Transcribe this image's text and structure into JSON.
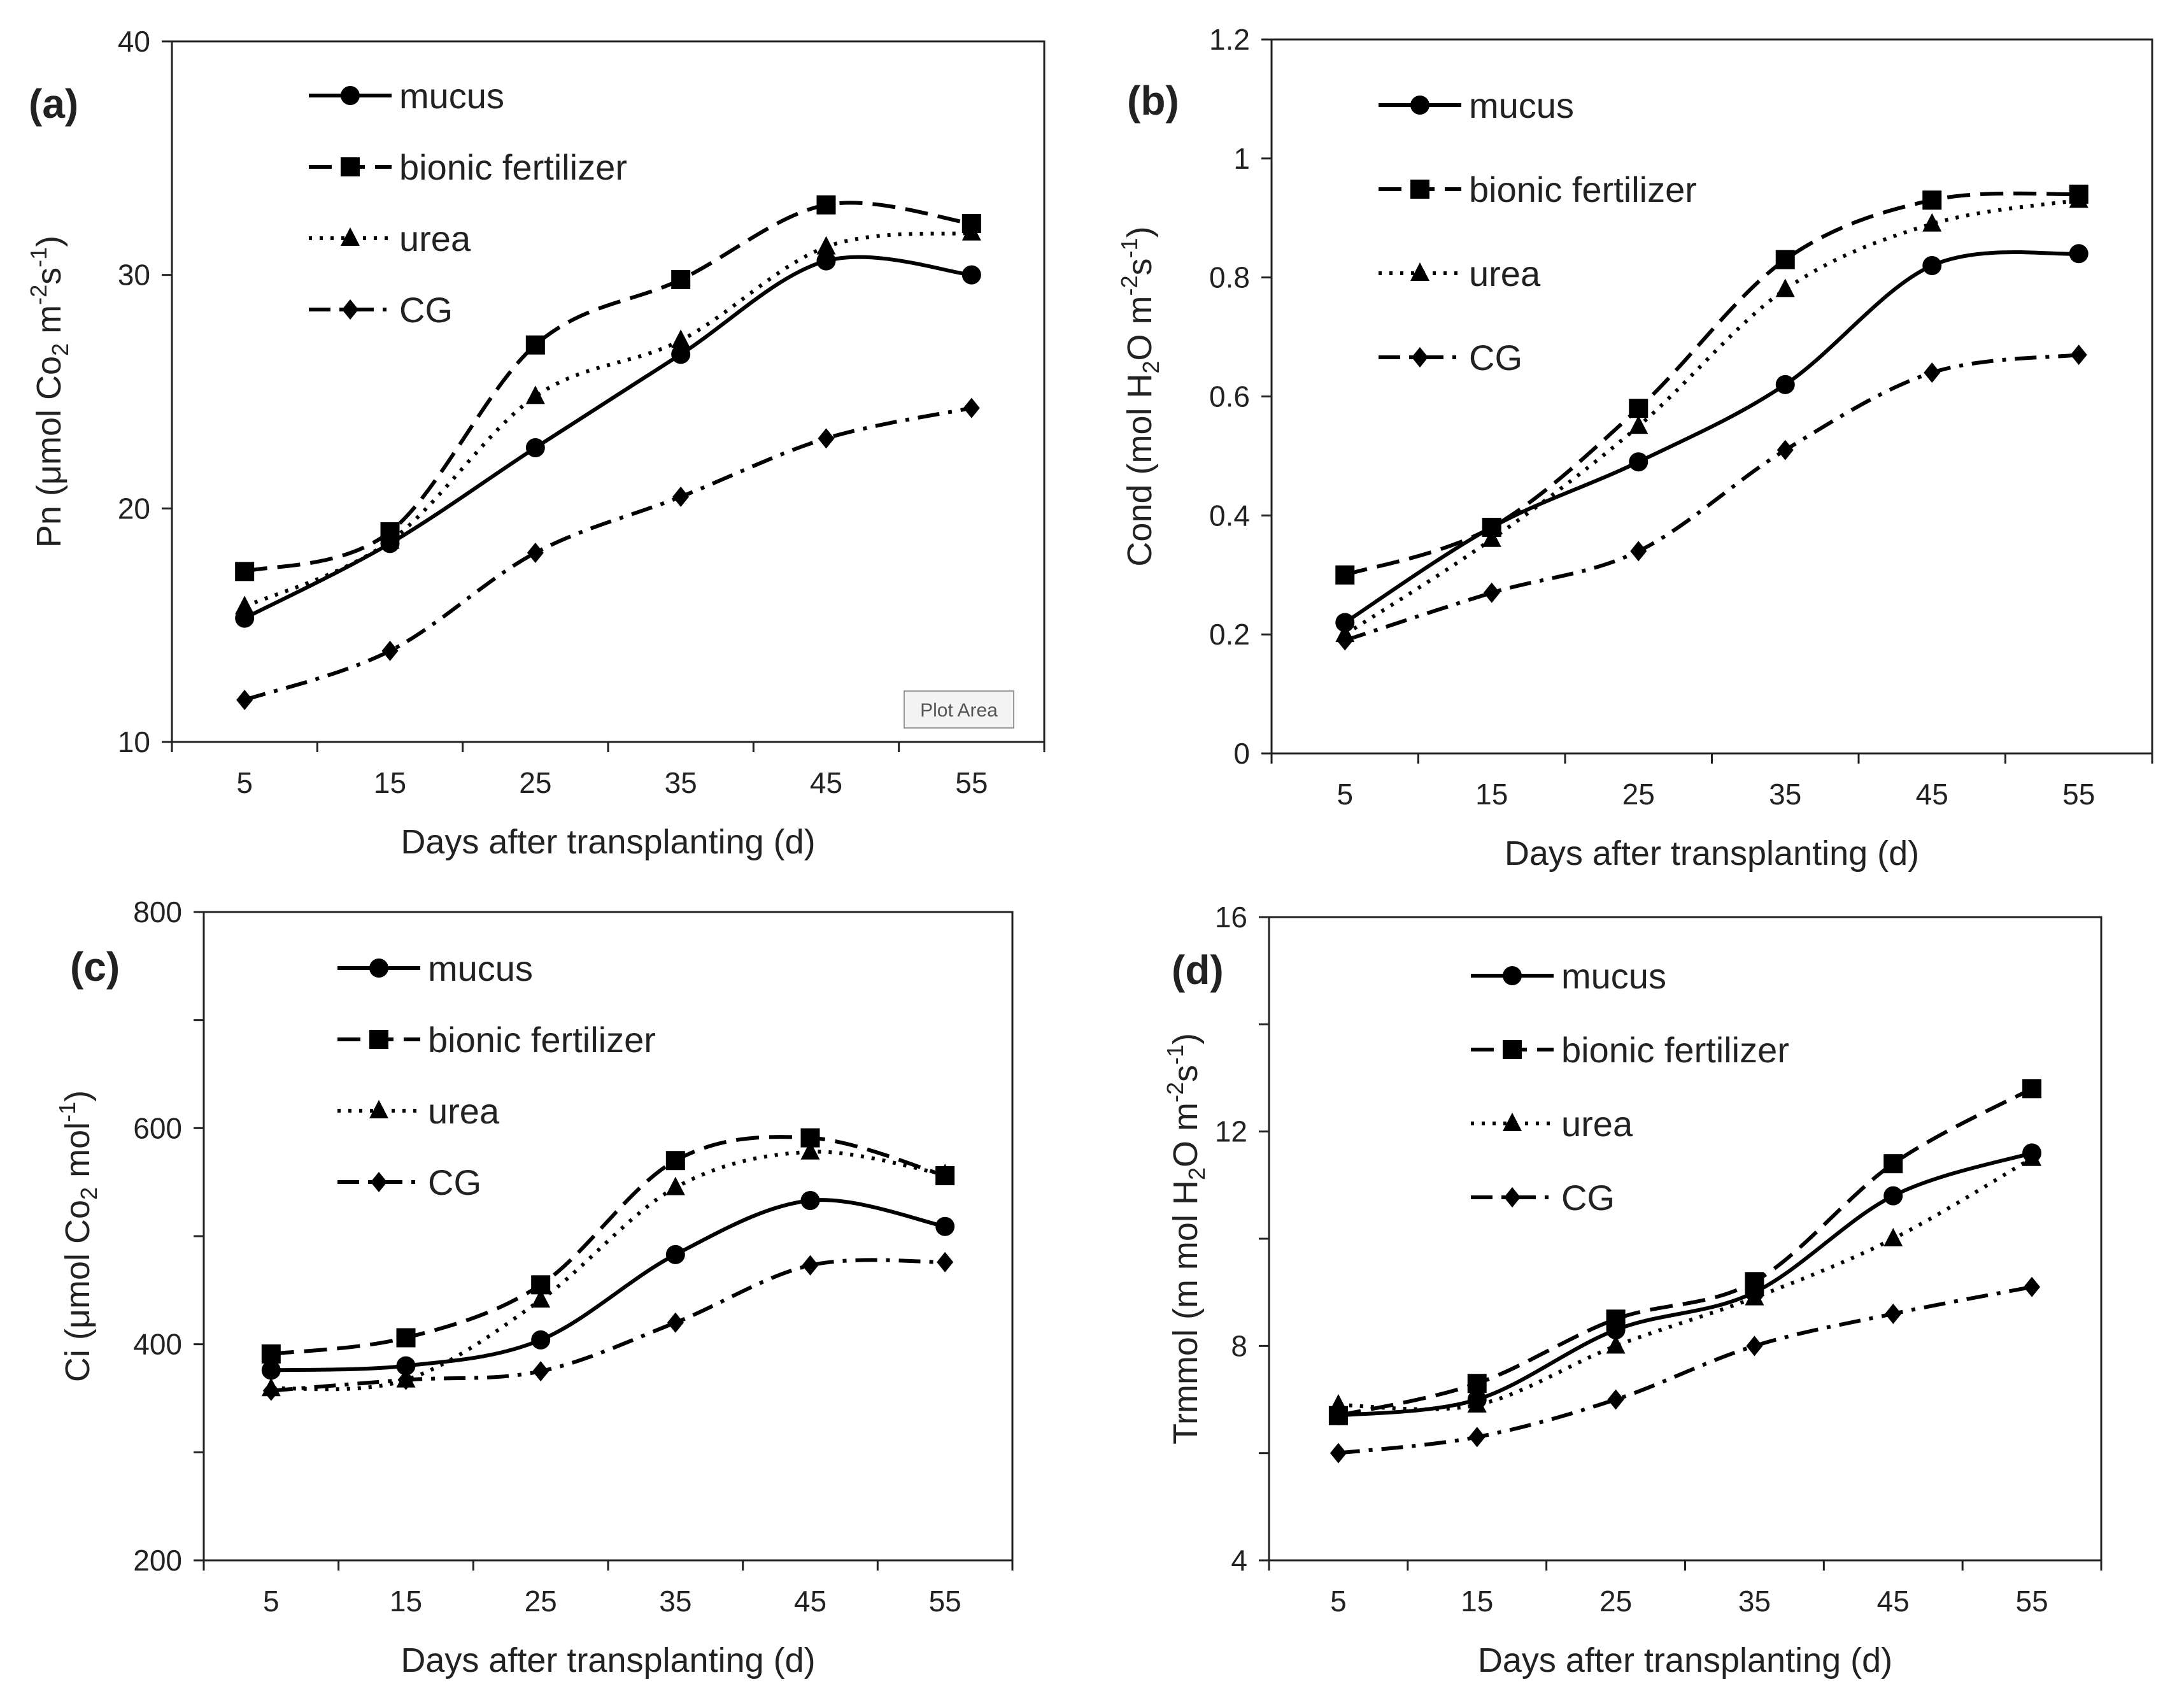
{
  "series_styles": [
    {
      "name": "mucus",
      "dash": "solid",
      "marker": "circle"
    },
    {
      "name": "bionic fertilizer",
      "dash": "dash",
      "marker": "square"
    },
    {
      "name": "urea",
      "dash": "dot",
      "marker": "triangle"
    },
    {
      "name": "CG",
      "dash": "dashdot",
      "marker": "diamond"
    }
  ],
  "tooltip_text": "Plot Area",
  "chart_data": [
    {
      "id": "a",
      "type": "line",
      "panel_label": "(a)",
      "xlabel": "Days after transplanting (d)",
      "ylabel_parts": [
        {
          "t": "Pn (μmol Co"
        },
        {
          "t": "2",
          "sub": true
        },
        {
          "t": " m"
        },
        {
          "t": "-2",
          "sup": true
        },
        {
          "t": "s"
        },
        {
          "t": "-1",
          "sup": true
        },
        {
          "t": ")"
        }
      ],
      "x": [
        5,
        15,
        25,
        35,
        45,
        55
      ],
      "xlim": [
        0,
        60
      ],
      "ylim": [
        10,
        40
      ],
      "yticks": [
        10,
        20,
        30,
        40
      ],
      "ytick_labels": [
        "10",
        "20",
        "30",
        "40"
      ],
      "series": [
        {
          "name": "mucus",
          "values": [
            15.3,
            18.5,
            22.6,
            26.6,
            30.6,
            30.0
          ]
        },
        {
          "name": "bionic fertilizer",
          "values": [
            17.3,
            19.0,
            27.0,
            29.8,
            33.0,
            32.2
          ]
        },
        {
          "name": "urea",
          "values": [
            15.8,
            18.6,
            24.8,
            27.2,
            31.2,
            31.8
          ]
        },
        {
          "name": "CG",
          "values": [
            11.8,
            13.9,
            18.1,
            20.5,
            23.0,
            24.3
          ]
        }
      ],
      "legend_position": "upper-left"
    },
    {
      "id": "b",
      "type": "line",
      "panel_label": "(b)",
      "xlabel": "Days after transplanting (d)",
      "ylabel_parts": [
        {
          "t": "Cond (mol H"
        },
        {
          "t": "2",
          "sub": true
        },
        {
          "t": "O m"
        },
        {
          "t": "-2",
          "sup": true
        },
        {
          "t": "s"
        },
        {
          "t": "-1",
          "sup": true
        },
        {
          "t": ")"
        }
      ],
      "x": [
        5,
        15,
        25,
        35,
        45,
        55
      ],
      "xlim": [
        0,
        60
      ],
      "ylim": [
        0,
        1.2
      ],
      "yticks": [
        0,
        0.2,
        0.4,
        0.6,
        0.8,
        1.0,
        1.2
      ],
      "ytick_labels": [
        "0",
        "0.2",
        "0.4",
        "0.6",
        "0.8",
        "1",
        "1.2"
      ],
      "series": [
        {
          "name": "mucus",
          "values": [
            0.22,
            0.38,
            0.49,
            0.62,
            0.82,
            0.84
          ]
        },
        {
          "name": "bionic fertilizer",
          "values": [
            0.3,
            0.38,
            0.58,
            0.83,
            0.93,
            0.94
          ]
        },
        {
          "name": "urea",
          "values": [
            0.2,
            0.36,
            0.55,
            0.78,
            0.89,
            0.93
          ]
        },
        {
          "name": "CG",
          "values": [
            0.19,
            0.27,
            0.34,
            0.51,
            0.64,
            0.67
          ]
        }
      ],
      "legend_position": "upper-left"
    },
    {
      "id": "c",
      "type": "line",
      "panel_label": "(c)",
      "xlabel": "Days after transplanting (d)",
      "ylabel_parts": [
        {
          "t": "Ci (μmol Co"
        },
        {
          "t": "2",
          "sub": true
        },
        {
          "t": " mol"
        },
        {
          "t": "-1",
          "sup": true
        },
        {
          "t": ")"
        }
      ],
      "x": [
        5,
        15,
        25,
        35,
        45,
        55
      ],
      "xlim": [
        0,
        60
      ],
      "ylim": [
        200,
        800
      ],
      "yticks": [
        200,
        300,
        400,
        500,
        600,
        700,
        800
      ],
      "ytick_labels": [
        "200",
        "",
        "400",
        "",
        "600",
        "",
        "800"
      ],
      "series": [
        {
          "name": "mucus",
          "values": [
            376,
            380,
            404,
            483,
            533,
            509
          ]
        },
        {
          "name": "bionic fertilizer",
          "values": [
            391,
            406,
            455,
            570,
            591,
            556
          ]
        },
        {
          "name": "urea",
          "values": [
            359,
            367,
            441,
            545,
            578,
            557
          ]
        },
        {
          "name": "CG",
          "values": [
            357,
            367,
            375,
            420,
            473,
            476
          ]
        }
      ],
      "legend_position": "upper-left"
    },
    {
      "id": "d",
      "type": "line",
      "panel_label": "(d)",
      "xlabel": "Days after transplanting (d)",
      "ylabel_parts": [
        {
          "t": "Trmmol (m mol H"
        },
        {
          "t": "2",
          "sub": true
        },
        {
          "t": "O m"
        },
        {
          "t": "-2",
          "sup": true
        },
        {
          "t": "s"
        },
        {
          "t": "-1",
          "sup": true
        },
        {
          "t": ")"
        }
      ],
      "x": [
        5,
        15,
        25,
        35,
        45,
        55
      ],
      "xlim": [
        0,
        60
      ],
      "ylim": [
        4,
        16
      ],
      "yticks": [
        4,
        6,
        8,
        10,
        12,
        14,
        16
      ],
      "ytick_labels": [
        "4",
        "",
        "8",
        "",
        "12",
        "",
        "16"
      ],
      "series": [
        {
          "name": "mucus",
          "values": [
            6.7,
            7.0,
            8.3,
            9.0,
            10.8,
            11.6
          ]
        },
        {
          "name": "bionic fertilizer",
          "values": [
            6.7,
            7.3,
            8.5,
            9.2,
            11.4,
            12.8
          ]
        },
        {
          "name": "urea",
          "values": [
            6.9,
            6.9,
            8.0,
            8.9,
            10.0,
            11.5
          ]
        },
        {
          "name": "CG",
          "values": [
            6.0,
            6.3,
            7.0,
            8.0,
            8.6,
            9.1
          ]
        }
      ],
      "legend_position": "upper-left"
    }
  ]
}
